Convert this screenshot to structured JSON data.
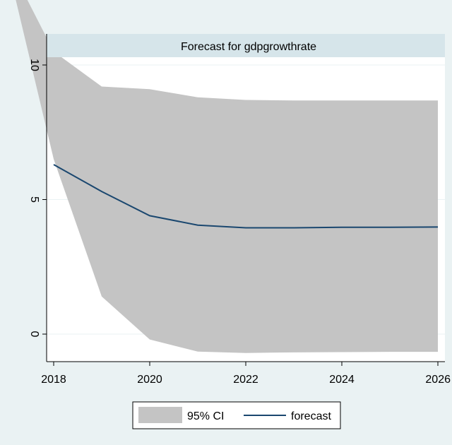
{
  "chart_data": {
    "type": "line",
    "title": "Forecast for gdpgrowthrate",
    "xlabel": "",
    "ylabel": "",
    "x": [
      2017,
      2018,
      2019,
      2020,
      2021,
      2022,
      2023,
      2024,
      2025,
      2026
    ],
    "series": [
      {
        "name": "95% CI",
        "kind": "band",
        "lower": [
          14.0,
          6.5,
          1.4,
          -0.2,
          -0.65,
          -0.7,
          -0.68,
          -0.67,
          -0.66,
          -0.66
        ],
        "upper": [
          14.0,
          10.5,
          9.2,
          9.1,
          8.8,
          8.7,
          8.68,
          8.68,
          8.68,
          8.68
        ]
      },
      {
        "name": "forecast",
        "kind": "line",
        "x": [
          2018,
          2019,
          2020,
          2021,
          2022,
          2023,
          2024,
          2025,
          2026
        ],
        "values": [
          6.3,
          5.3,
          4.4,
          4.05,
          3.95,
          3.95,
          3.97,
          3.97,
          3.98
        ]
      }
    ],
    "x_ticks": [
      "2018",
      "2020",
      "2022",
      "2024",
      "2026"
    ],
    "y_ticks": [
      "0",
      "5",
      "10"
    ],
    "xlim": [
      2017.9,
      2026.05
    ],
    "ylim": [
      -0.95,
      10.1
    ],
    "grid": true,
    "legend_position": "bottom"
  },
  "colors": {
    "background": "#eaf2f3",
    "plot_background": "#ffffff",
    "title_band": "#d6e5ea",
    "ci_fill": "#c4c4c4",
    "forecast_line": "#1a476f",
    "grid": "#eaf2f3"
  }
}
